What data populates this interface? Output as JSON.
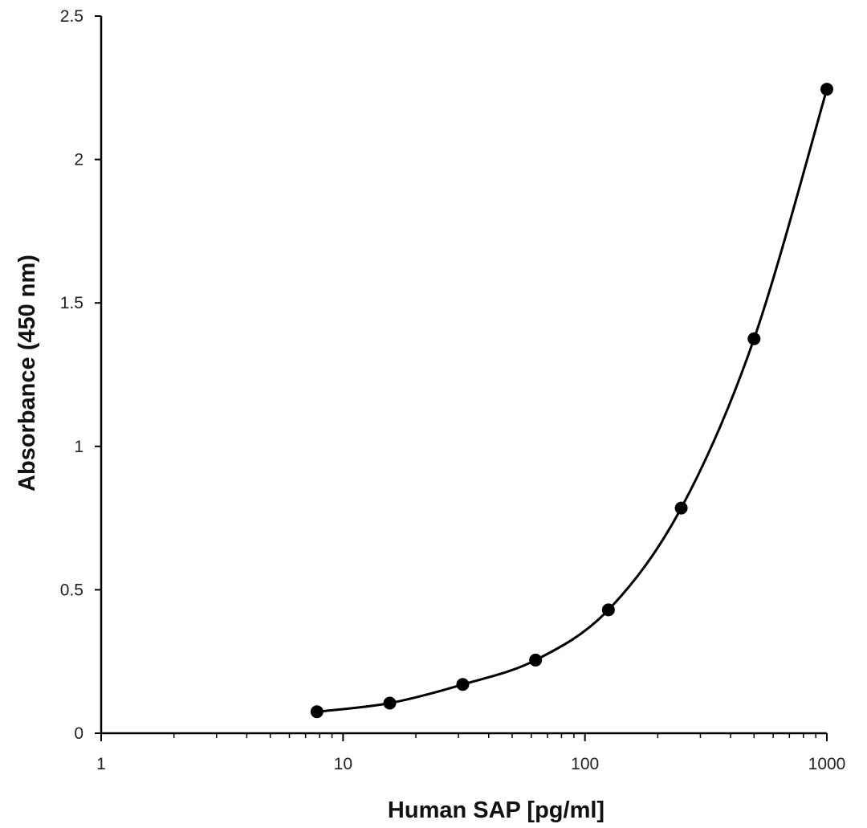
{
  "chart_data": {
    "type": "scatter",
    "title": "",
    "xlabel": "Human SAP [pg/ml]",
    "ylabel": "Absorbance (450 nm)",
    "x_scale": "log",
    "xlim": [
      1,
      1000
    ],
    "ylim": [
      0,
      2.5
    ],
    "x_ticks": [
      "1",
      "10",
      "100",
      "1000"
    ],
    "y_ticks": [
      "0",
      "0.5",
      "1",
      "1.5",
      "2",
      "2.5"
    ],
    "grid": false,
    "legend": "none",
    "fit_curve": true,
    "series": [
      {
        "x": [
          7.8,
          15.6,
          31.25,
          62.5,
          125,
          250,
          500,
          1000
        ],
        "y": [
          0.075,
          0.105,
          0.17,
          0.255,
          0.43,
          0.785,
          1.375,
          2.245
        ]
      }
    ],
    "colors": {
      "marker": "#000000",
      "line": "#000000",
      "axis": "#000000"
    }
  }
}
